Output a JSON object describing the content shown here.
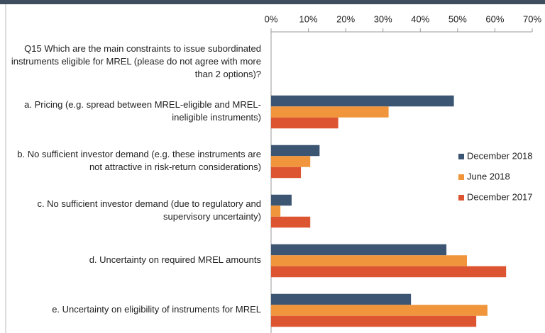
{
  "chart_data": {
    "type": "hbar",
    "categories": [
      "Q15 Which are the main constraints to issue subordinated instruments eligible for MREL (please do not agree with more than 2 options)?",
      "a. Pricing (e.g. spread between MREL-eligible and MREL-ineligible instruments)",
      "b. No sufficient investor demand (e.g. these instruments are not attractive in risk-return considerations)",
      "c. No sufficient investor demand (due to regulatory and supervisory uncertainty)",
      "d. Uncertainty on required MREL amounts",
      "e. Uncertainty on eligibility of instruments for MREL"
    ],
    "series": [
      {
        "name": "December 2018",
        "color": "#3b5573",
        "values": [
          null,
          49,
          13,
          5.5,
          47,
          37.5
        ]
      },
      {
        "name": "June 2018",
        "color": "#f0953b",
        "values": [
          null,
          31.5,
          10.5,
          2.5,
          52.5,
          58
        ]
      },
      {
        "name": "December 2017",
        "color": "#dd5431",
        "values": [
          null,
          18,
          8,
          10.5,
          63,
          55
        ]
      }
    ],
    "xlim": [
      0,
      70
    ],
    "xticks": [
      {
        "value": 0,
        "label": "0%"
      },
      {
        "value": 10,
        "label": "10%"
      },
      {
        "value": 20,
        "label": "20%"
      },
      {
        "value": 30,
        "label": "30%"
      },
      {
        "value": 40,
        "label": "40%"
      },
      {
        "value": 50,
        "label": "50%"
      },
      {
        "value": 60,
        "label": "60%"
      },
      {
        "value": 70,
        "label": "70%"
      }
    ],
    "legend": "right"
  }
}
